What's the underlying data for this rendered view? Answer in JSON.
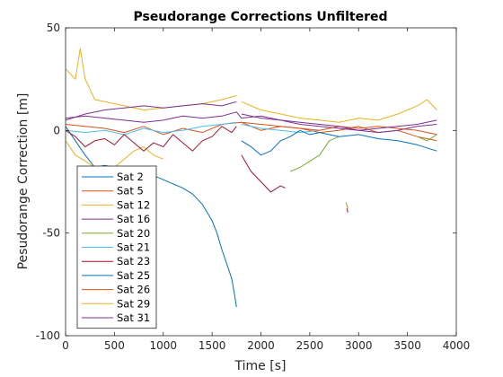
{
  "chart_data": {
    "type": "line",
    "title": "Pseudorange Corrections Unfiltered",
    "xlabel": "Time [s]",
    "ylabel": "Pesudorange Correction [m]",
    "xlim": [
      0,
      4000
    ],
    "ylim": [
      -100,
      50
    ],
    "xticks": [
      0,
      500,
      1000,
      1500,
      2000,
      2500,
      3000,
      3500,
      4000
    ],
    "yticks": [
      -100,
      -50,
      0,
      50
    ],
    "xtick_labels": [
      "0",
      "500",
      "1000",
      "1500",
      "2000",
      "2500",
      "3000",
      "3500",
      "4000"
    ],
    "ytick_labels": [
      "-100",
      "-50",
      "0",
      "50"
    ],
    "grid": false,
    "legend_position": "lower-left",
    "series": [
      {
        "name": "Sat 2",
        "color": "#0072BD",
        "segments": [
          [
            [
              0,
              2
            ],
            [
              100,
              -5
            ],
            [
              200,
              -12
            ],
            [
              300,
              -18
            ],
            [
              400,
              -17
            ],
            [
              500,
              -18
            ],
            [
              600,
              -19
            ],
            [
              700,
              -20
            ],
            [
              800,
              -18
            ],
            [
              900,
              -22
            ],
            [
              1000,
              -24
            ],
            [
              1100,
              -26
            ],
            [
              1200,
              -28
            ],
            [
              1300,
              -31
            ],
            [
              1400,
              -36
            ],
            [
              1450,
              -40
            ],
            [
              1500,
              -44
            ],
            [
              1550,
              -50
            ],
            [
              1600,
              -58
            ],
            [
              1650,
              -65
            ],
            [
              1700,
              -72
            ],
            [
              1730,
              -80
            ],
            [
              1750,
              -86
            ]
          ]
        ]
      },
      {
        "name": "Sat 5",
        "color": "#D95319",
        "segments": [
          [
            [
              0,
              3
            ],
            [
              200,
              2
            ],
            [
              400,
              1
            ],
            [
              600,
              -1
            ],
            [
              800,
              2
            ],
            [
              1000,
              -2
            ],
            [
              1200,
              1
            ],
            [
              1400,
              -1
            ],
            [
              1600,
              3
            ],
            [
              1800,
              4
            ],
            [
              2000,
              0
            ],
            [
              2200,
              2
            ],
            [
              2400,
              1
            ],
            [
              2600,
              -1
            ],
            [
              2800,
              0
            ],
            [
              3000,
              2
            ],
            [
              3200,
              -1
            ],
            [
              3400,
              0
            ],
            [
              3600,
              -3
            ],
            [
              3800,
              -5
            ]
          ]
        ]
      },
      {
        "name": "Sat 12",
        "color": "#EDB120",
        "segments": [
          [
            [
              0,
              -5
            ],
            [
              100,
              -12
            ],
            [
              200,
              -15
            ],
            [
              300,
              -18
            ],
            [
              400,
              -20
            ],
            [
              500,
              -18
            ],
            [
              600,
              -14
            ],
            [
              700,
              -10
            ],
            [
              800,
              -8
            ],
            [
              900,
              -12
            ],
            [
              1000,
              -14
            ]
          ]
        ]
      },
      {
        "name": "Sat 16",
        "color": "#7E2F8E",
        "segments": [
          [
            [
              0,
              6
            ],
            [
              200,
              7
            ],
            [
              400,
              6
            ],
            [
              600,
              5
            ],
            [
              800,
              4
            ],
            [
              1000,
              5
            ],
            [
              1200,
              7
            ],
            [
              1400,
              6
            ],
            [
              1600,
              7
            ],
            [
              1750,
              9
            ],
            [
              1800,
              6
            ],
            [
              2000,
              7
            ],
            [
              2200,
              5
            ],
            [
              2400,
              3
            ],
            [
              2600,
              2
            ],
            [
              2800,
              1
            ],
            [
              3000,
              0
            ],
            [
              3200,
              -1
            ],
            [
              3400,
              0
            ],
            [
              3600,
              2
            ],
            [
              3800,
              3
            ]
          ]
        ]
      },
      {
        "name": "Sat 20",
        "color": "#77AC30",
        "segments": [
          [
            [
              2300,
              -20
            ],
            [
              2400,
              -18
            ],
            [
              2500,
              -15
            ],
            [
              2600,
              -12
            ],
            [
              2700,
              -5
            ],
            [
              2800,
              -3
            ]
          ],
          [
            [
              2870,
              -35
            ],
            [
              2890,
              -38
            ]
          ],
          [
            [
              3600,
              -3
            ],
            [
              3700,
              -5
            ],
            [
              3800,
              -2
            ]
          ]
        ]
      },
      {
        "name": "Sat 21",
        "color": "#4DBEEE",
        "segments": [
          [
            [
              0,
              0
            ],
            [
              200,
              -1
            ],
            [
              400,
              0
            ],
            [
              600,
              -2
            ],
            [
              800,
              1
            ],
            [
              1000,
              -1
            ],
            [
              1200,
              0
            ],
            [
              1400,
              2
            ],
            [
              1600,
              3
            ],
            [
              1750,
              4
            ]
          ],
          [
            [
              1800,
              3
            ],
            [
              2000,
              1
            ],
            [
              2200,
              0
            ],
            [
              2400,
              -1
            ],
            [
              2600,
              0
            ]
          ]
        ]
      },
      {
        "name": "Sat 23",
        "color": "#A2142F",
        "segments": [
          [
            [
              0,
              0
            ],
            [
              100,
              -3
            ],
            [
              200,
              -8
            ],
            [
              300,
              -5
            ],
            [
              400,
              -4
            ],
            [
              500,
              -7
            ],
            [
              600,
              -2
            ],
            [
              700,
              -6
            ],
            [
              800,
              -10
            ],
            [
              900,
              -6
            ],
            [
              1000,
              -8
            ],
            [
              1100,
              -2
            ],
            [
              1200,
              -6
            ],
            [
              1300,
              -10
            ],
            [
              1400,
              -5
            ],
            [
              1500,
              -3
            ],
            [
              1600,
              2
            ],
            [
              1700,
              -1
            ],
            [
              1750,
              2
            ]
          ],
          [
            [
              1800,
              -12
            ],
            [
              1900,
              -20
            ],
            [
              2000,
              -25
            ],
            [
              2100,
              -30
            ],
            [
              2200,
              -27
            ],
            [
              2250,
              -28
            ]
          ],
          [
            [
              2880,
              -38
            ],
            [
              2890,
              -40
            ]
          ]
        ]
      },
      {
        "name": "Sat 25",
        "color": "#0072BD",
        "segments": [
          [
            [
              1800,
              -5
            ],
            [
              1900,
              -8
            ],
            [
              2000,
              -12
            ],
            [
              2100,
              -10
            ],
            [
              2200,
              -5
            ],
            [
              2300,
              -3
            ],
            [
              2400,
              0
            ],
            [
              2500,
              -2
            ],
            [
              2600,
              -1
            ],
            [
              2800,
              -3
            ],
            [
              3000,
              -2
            ],
            [
              3200,
              -4
            ],
            [
              3400,
              -5
            ],
            [
              3600,
              -7
            ],
            [
              3800,
              -10
            ]
          ]
        ]
      },
      {
        "name": "Sat 26",
        "color": "#D95319",
        "segments": [
          [
            [
              1800,
              4
            ],
            [
              2000,
              3
            ],
            [
              2200,
              2
            ],
            [
              2400,
              1
            ],
            [
              2600,
              0
            ],
            [
              2800,
              2
            ],
            [
              3000,
              1
            ],
            [
              3200,
              2
            ],
            [
              3400,
              1
            ],
            [
              3600,
              0
            ],
            [
              3800,
              -2
            ]
          ]
        ]
      },
      {
        "name": "Sat 29",
        "color": "#EDB120",
        "segments": [
          [
            [
              0,
              30
            ],
            [
              100,
              25
            ],
            [
              150,
              40
            ],
            [
              200,
              25
            ],
            [
              300,
              15
            ],
            [
              400,
              14
            ],
            [
              600,
              12
            ],
            [
              800,
              10
            ],
            [
              1000,
              11
            ],
            [
              1200,
              12
            ],
            [
              1400,
              13
            ],
            [
              1600,
              15
            ],
            [
              1750,
              17
            ]
          ],
          [
            [
              1800,
              14
            ],
            [
              2000,
              10
            ],
            [
              2200,
              8
            ],
            [
              2400,
              6
            ],
            [
              2600,
              5
            ],
            [
              2800,
              4
            ],
            [
              3000,
              6
            ],
            [
              3200,
              5
            ],
            [
              3400,
              8
            ],
            [
              3600,
              12
            ],
            [
              3700,
              15
            ],
            [
              3800,
              10
            ]
          ]
        ]
      },
      {
        "name": "Sat 31",
        "color": "#7E2F8E",
        "segments": [
          [
            [
              0,
              5
            ],
            [
              200,
              8
            ],
            [
              400,
              10
            ],
            [
              600,
              11
            ],
            [
              800,
              12
            ],
            [
              1000,
              11
            ],
            [
              1200,
              12
            ],
            [
              1400,
              13
            ],
            [
              1600,
              12
            ],
            [
              1750,
              14
            ]
          ],
          [
            [
              1800,
              8
            ],
            [
              2000,
              6
            ],
            [
              2200,
              5
            ],
            [
              2400,
              4
            ],
            [
              2600,
              3
            ],
            [
              2800,
              2
            ],
            [
              3000,
              0
            ],
            [
              3200,
              1
            ],
            [
              3400,
              2
            ],
            [
              3600,
              3
            ],
            [
              3800,
              5
            ]
          ]
        ]
      }
    ]
  }
}
